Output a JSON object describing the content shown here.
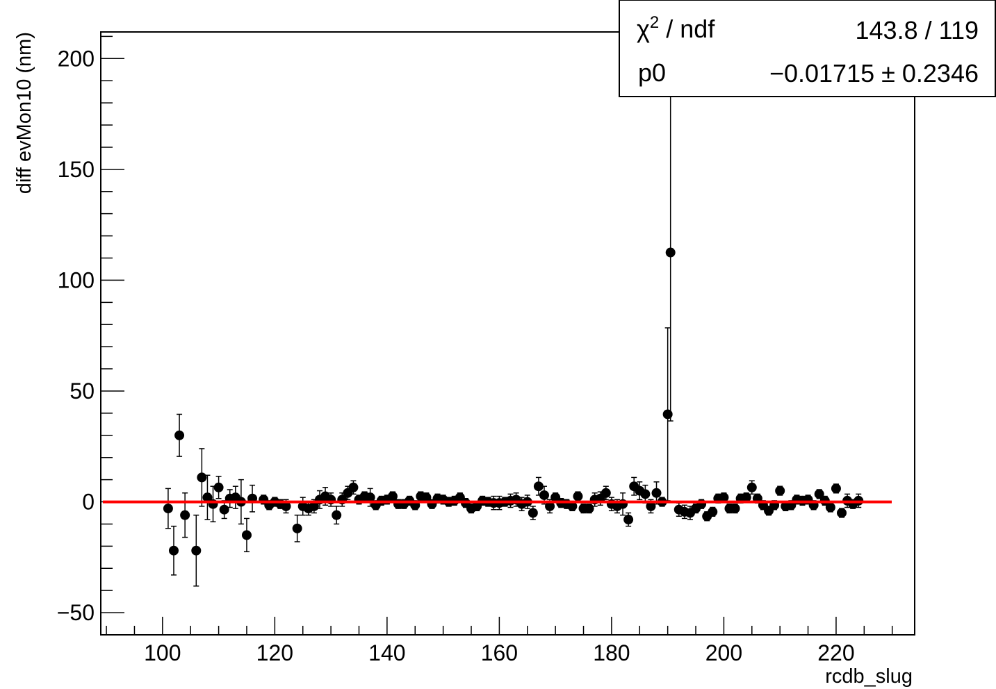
{
  "chart_data": {
    "type": "scatter",
    "title": "",
    "xlabel": "rcdb_slug",
    "ylabel": "diff evMon10 (nm)",
    "xlim": [
      89,
      234
    ],
    "ylim": [
      -60,
      212
    ],
    "x_ticks": [
      100,
      120,
      140,
      160,
      180,
      200,
      220
    ],
    "x_tick_labels": [
      "100",
      "120",
      "140",
      "160",
      "180",
      "200",
      "220"
    ],
    "y_ticks": [
      -50,
      0,
      50,
      100,
      150,
      200
    ],
    "y_tick_labels": [
      "−50",
      "0",
      "50",
      "100",
      "150",
      "200"
    ],
    "grid": false,
    "legend": "none",
    "fit": {
      "type": "constant",
      "value": -0.01715,
      "color": "#ff0000"
    },
    "stats_box": {
      "placement": "top-right",
      "rows": [
        {
          "label_main": "χ",
          "label_sup": "2",
          "label_rest": " / ndf",
          "value": "143.8 / 119"
        },
        {
          "label_main": "p0",
          "label_sup": "",
          "label_rest": "",
          "value": "−0.01715 ± 0.2346"
        }
      ]
    },
    "marker_color": "#000000",
    "points": [
      [
        101,
        -3,
        9
      ],
      [
        102,
        -22,
        11
      ],
      [
        103,
        30,
        9.5
      ],
      [
        104,
        -6,
        10
      ],
      [
        106,
        -22,
        16
      ],
      [
        107,
        11,
        13
      ],
      [
        108,
        2,
        10
      ],
      [
        109,
        -1,
        8
      ],
      [
        110,
        6.5,
        5
      ],
      [
        111,
        -3.5,
        4
      ],
      [
        112,
        1.5,
        4
      ],
      [
        113,
        2,
        5
      ],
      [
        114,
        0,
        10
      ],
      [
        115,
        -15,
        7.5
      ],
      [
        116,
        1.5,
        6
      ],
      [
        118,
        1,
        2
      ],
      [
        119,
        -1.5,
        2
      ],
      [
        120,
        0,
        2
      ],
      [
        121,
        -1,
        2
      ],
      [
        122,
        -2,
        3
      ],
      [
        124,
        -12,
        6
      ],
      [
        125,
        -2,
        4
      ],
      [
        126,
        -3,
        3
      ],
      [
        127,
        -2,
        3
      ],
      [
        128,
        1,
        4
      ],
      [
        129,
        2.5,
        4
      ],
      [
        130,
        1,
        3
      ],
      [
        131,
        -6,
        4
      ],
      [
        132,
        1,
        3
      ],
      [
        133,
        4,
        3
      ],
      [
        134,
        6.5,
        3
      ],
      [
        135,
        1,
        2
      ],
      [
        136,
        2.5,
        2
      ],
      [
        137,
        2,
        4
      ],
      [
        138,
        -1.5,
        2
      ],
      [
        139,
        0.5,
        2
      ],
      [
        140,
        1,
        2
      ],
      [
        141,
        2.5,
        2
      ],
      [
        142,
        -1,
        2
      ],
      [
        143,
        -1,
        2
      ],
      [
        144,
        0.5,
        2
      ],
      [
        145,
        -1.5,
        2
      ],
      [
        146,
        2.5,
        2
      ],
      [
        147,
        2,
        2
      ],
      [
        148,
        -1,
        2
      ],
      [
        149,
        1.5,
        2
      ],
      [
        150,
        1,
        2
      ],
      [
        151,
        0,
        2
      ],
      [
        152,
        0.5,
        2
      ],
      [
        153,
        2,
        2
      ],
      [
        154,
        -0.5,
        2
      ],
      [
        155,
        -3,
        2
      ],
      [
        156,
        -2,
        2
      ],
      [
        157,
        0.5,
        2
      ],
      [
        158,
        0,
        2
      ],
      [
        159,
        -0.5,
        3
      ],
      [
        160,
        -0.5,
        3
      ],
      [
        161,
        0,
        2
      ],
      [
        162,
        0.5,
        3
      ],
      [
        163,
        1,
        3
      ],
      [
        164,
        -1,
        3
      ],
      [
        165,
        0,
        3
      ],
      [
        166,
        -5,
        3
      ],
      [
        167,
        7,
        4
      ],
      [
        168,
        3,
        4
      ],
      [
        169,
        -2,
        3
      ],
      [
        170,
        2,
        2
      ],
      [
        171,
        -0.5,
        2
      ],
      [
        172,
        -1,
        2
      ],
      [
        173,
        -2,
        2
      ],
      [
        174,
        2.5,
        2
      ],
      [
        175,
        -3,
        2
      ],
      [
        176,
        -3,
        2
      ],
      [
        177,
        1,
        3
      ],
      [
        178,
        1.5,
        3
      ],
      [
        179,
        4,
        3
      ],
      [
        180,
        -1,
        3
      ],
      [
        181,
        -2,
        3
      ],
      [
        182,
        -1,
        5
      ],
      [
        183,
        -8,
        3
      ],
      [
        184,
        7,
        4
      ],
      [
        185,
        5,
        4
      ],
      [
        186,
        3.5,
        4
      ],
      [
        187,
        -2,
        3
      ],
      [
        188,
        4,
        5
      ],
      [
        189,
        0,
        2
      ],
      [
        190,
        39.5,
        39
      ],
      [
        190.5,
        112.5,
        76
      ],
      [
        192,
        -3.5,
        3
      ],
      [
        193,
        -4.5,
        3
      ],
      [
        194,
        -5,
        3
      ],
      [
        195,
        -3,
        2
      ],
      [
        196,
        -1,
        2
      ],
      [
        197,
        -6.5,
        2
      ],
      [
        198,
        -4.5,
        2
      ],
      [
        199,
        1.5,
        2
      ],
      [
        200,
        2,
        2
      ],
      [
        201,
        -3,
        2
      ],
      [
        202,
        -3,
        2
      ],
      [
        203,
        1.5,
        2
      ],
      [
        204,
        2,
        2
      ],
      [
        205,
        6.5,
        3
      ],
      [
        206,
        1.5,
        2
      ],
      [
        207,
        -1.5,
        2
      ],
      [
        208,
        -4,
        2
      ],
      [
        209,
        -1.5,
        2
      ],
      [
        210,
        5,
        2
      ],
      [
        211,
        -2,
        2
      ],
      [
        212,
        -1.5,
        2
      ],
      [
        213,
        1,
        2
      ],
      [
        214,
        0.5,
        2
      ],
      [
        215,
        1,
        2
      ],
      [
        216,
        -1.5,
        2
      ],
      [
        217,
        3.5,
        2
      ],
      [
        218,
        0.5,
        2
      ],
      [
        219,
        -2.5,
        2
      ],
      [
        220,
        6,
        2
      ],
      [
        221,
        -5,
        2
      ],
      [
        222,
        0.5,
        3
      ],
      [
        223,
        -1,
        2
      ],
      [
        224,
        0.5,
        3
      ]
    ]
  }
}
